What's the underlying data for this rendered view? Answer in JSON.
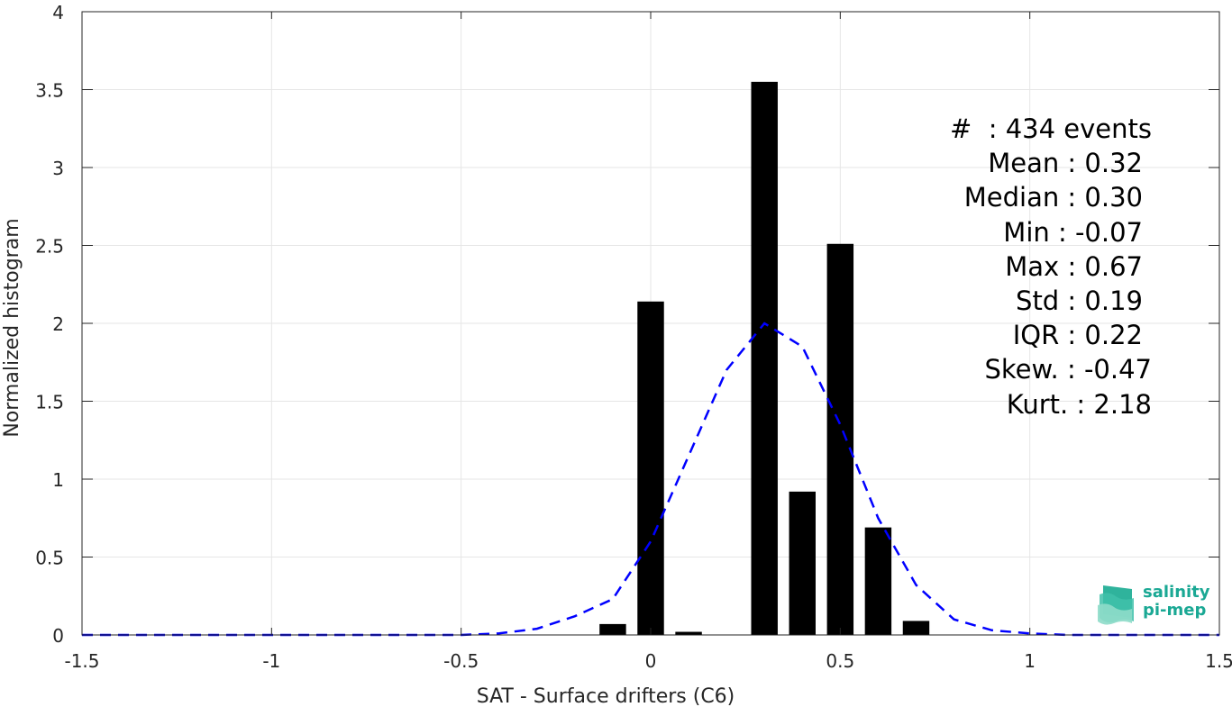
{
  "chart_data": {
    "type": "bar",
    "xlabel": "SAT - Surface drifters (C6)",
    "ylabel": "Normalized histogram",
    "xlim": [
      -1.5,
      1.5
    ],
    "ylim": [
      0,
      4
    ],
    "xticks": [
      "-1.5",
      "-1",
      "-0.5",
      "0",
      "0.5",
      "1",
      "1.5"
    ],
    "yticks": [
      "0",
      "0.5",
      "1",
      "1.5",
      "2",
      "2.5",
      "3",
      "3.5",
      "4"
    ],
    "grid": true,
    "bar_width": 0.07,
    "bars": [
      {
        "x": -0.1,
        "value": 0.07
      },
      {
        "x": 0.0,
        "value": 2.14
      },
      {
        "x": 0.1,
        "value": 0.02
      },
      {
        "x": 0.3,
        "value": 3.55
      },
      {
        "x": 0.4,
        "value": 0.92
      },
      {
        "x": 0.5,
        "value": 2.51
      },
      {
        "x": 0.6,
        "value": 0.69
      },
      {
        "x": 0.7,
        "value": 0.09
      }
    ],
    "fit_curve": {
      "style": "dashed",
      "color": "#0000ff",
      "x": [
        -1.5,
        -1.4,
        -1.3,
        -1.2,
        -1.1,
        -1.0,
        -0.9,
        -0.8,
        -0.7,
        -0.6,
        -0.5,
        -0.4,
        -0.3,
        -0.2,
        -0.1,
        0.0,
        0.1,
        0.2,
        0.3,
        0.4,
        0.5,
        0.6,
        0.7,
        0.8,
        0.9,
        1.0,
        1.1,
        1.2,
        1.3,
        1.4,
        1.5
      ],
      "y": [
        0,
        0,
        0,
        0,
        0,
        0,
        0,
        0,
        0,
        0,
        0.0,
        0.01,
        0.04,
        0.12,
        0.23,
        0.6,
        1.15,
        1.7,
        2.0,
        1.85,
        1.35,
        0.75,
        0.32,
        0.1,
        0.03,
        0.01,
        0,
        0,
        0,
        0,
        0
      ]
    },
    "stats_box": [
      "#  : 434 events",
      "Mean : 0.32",
      "Median : 0.30",
      "Min : -0.07",
      "Max : 0.67",
      "Std : 0.19",
      "IQR : 0.22",
      "Skew. : -0.47",
      "Kurt. : 2.18"
    ]
  },
  "logo": {
    "line1": "salinity",
    "line2": "pi-mep",
    "icon": "salinity-wave-icon",
    "color": "#1aa894"
  }
}
